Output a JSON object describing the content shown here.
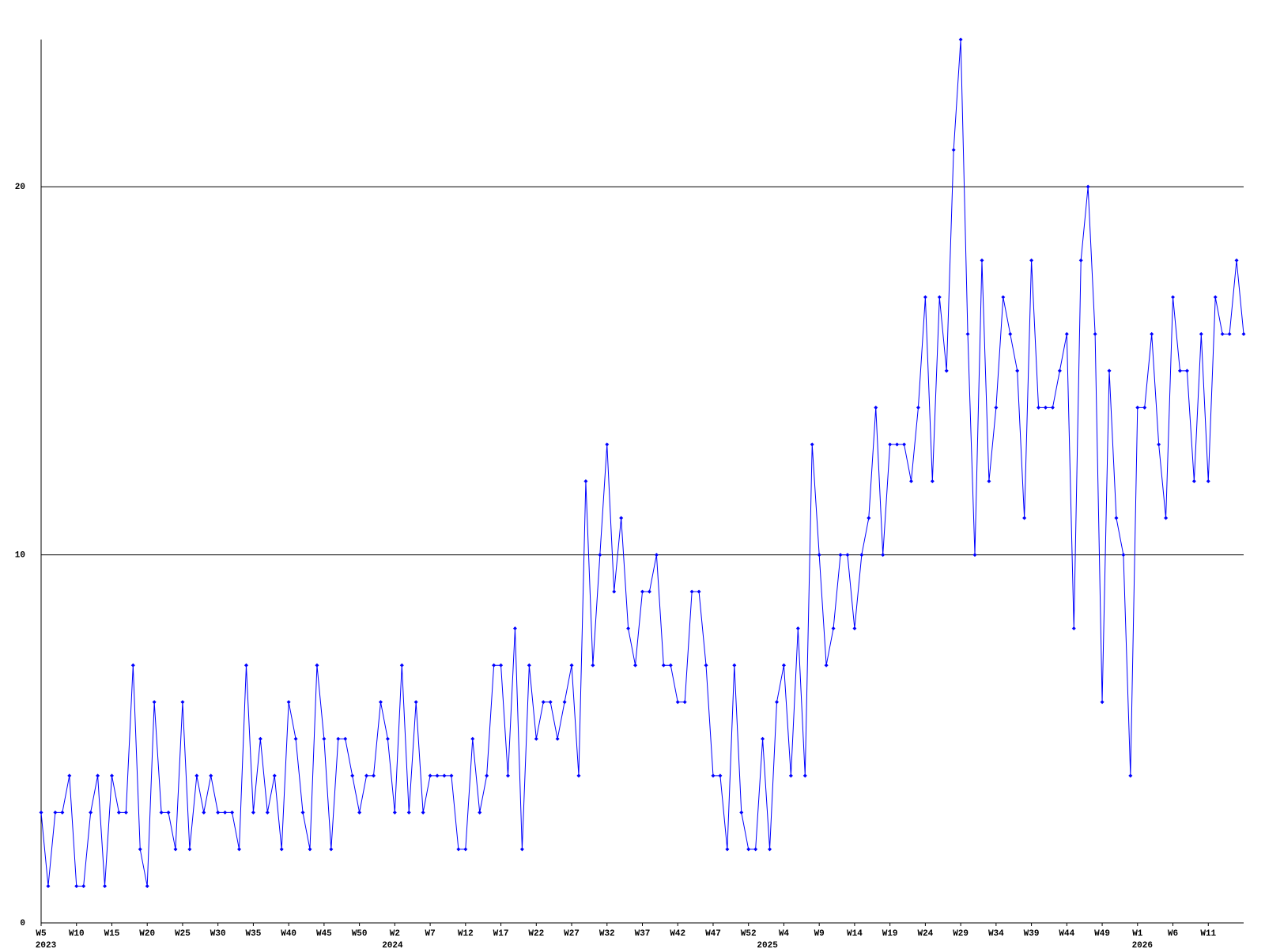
{
  "chart_data": {
    "type": "line",
    "categories": [
      "W5",
      null,
      null,
      null,
      null,
      "W10",
      null,
      null,
      null,
      null,
      "W15",
      null,
      null,
      null,
      null,
      "W20",
      null,
      null,
      null,
      null,
      "W25",
      null,
      null,
      null,
      null,
      "W30",
      null,
      null,
      null,
      null,
      "W35",
      null,
      null,
      null,
      null,
      "W40",
      null,
      null,
      null,
      null,
      "W45",
      null,
      null,
      null,
      null,
      "W50",
      null,
      null,
      null,
      null,
      "W2",
      null,
      null,
      null,
      null,
      "W7",
      null,
      null,
      null,
      null,
      "W12",
      null,
      null,
      null,
      null,
      "W17",
      null,
      null,
      null,
      null,
      "W22",
      null,
      null,
      null,
      null,
      "W27",
      null,
      null,
      null,
      null,
      "W32",
      null,
      null,
      null,
      null,
      "W37",
      null,
      null,
      null,
      null,
      "W42",
      null,
      null,
      null,
      null,
      "W47",
      null,
      null,
      null,
      null,
      "W52",
      null,
      null,
      null,
      null,
      "W4",
      null,
      null,
      null,
      null,
      "W9",
      null,
      null,
      null,
      null,
      "W14",
      null,
      null,
      null,
      null,
      "W19",
      null,
      null,
      null,
      null,
      "W24",
      null,
      null,
      null,
      null,
      "W29",
      null,
      null,
      null,
      null,
      "W34",
      null,
      null,
      null,
      null,
      "W39",
      null,
      null,
      null,
      null,
      "W44",
      null,
      null,
      null,
      null,
      "W49",
      null,
      null,
      null,
      null,
      "W1",
      null,
      null,
      null,
      null,
      "W6",
      null,
      null,
      null,
      null,
      "W11",
      null,
      null,
      null,
      null,
      null
    ],
    "years": [
      "2023",
      null,
      null,
      null,
      null,
      null,
      null,
      null,
      null,
      null,
      null,
      null,
      null,
      null,
      null,
      null,
      null,
      null,
      null,
      null,
      null,
      null,
      null,
      null,
      null,
      null,
      null,
      null,
      null,
      null,
      null,
      null,
      null,
      null,
      null,
      null,
      null,
      null,
      null,
      null,
      null,
      null,
      null,
      null,
      null,
      null,
      null,
      null,
      null,
      "2024",
      null,
      null,
      null,
      null,
      null,
      null,
      null,
      null,
      null,
      null,
      null,
      null,
      null,
      null,
      null,
      null,
      null,
      null,
      null,
      null,
      null,
      null,
      null,
      null,
      null,
      null,
      null,
      null,
      null,
      null,
      null,
      null,
      null,
      null,
      null,
      null,
      null,
      null,
      null,
      null,
      null,
      null,
      null,
      null,
      null,
      null,
      null,
      null,
      null,
      null,
      null,
      null,
      "2025",
      null,
      null,
      null,
      null,
      null,
      null,
      null,
      null,
      null,
      null,
      null,
      null,
      null,
      null,
      null,
      null,
      null,
      null,
      null,
      null,
      null,
      null,
      null,
      null,
      null,
      null,
      null,
      null,
      null,
      null,
      null,
      null,
      null,
      null,
      null,
      null,
      null,
      null,
      null,
      null,
      null,
      null,
      null,
      null,
      null,
      null,
      null,
      null,
      null,
      null,
      null,
      null,
      "2026",
      null,
      null,
      null,
      null,
      null,
      null,
      null,
      null,
      null,
      null,
      null,
      null,
      null,
      null,
      null
    ],
    "series": [
      {
        "color": "#0000ff",
        "values": [
          3,
          1,
          3,
          3,
          4,
          1,
          1,
          3,
          4,
          1,
          4,
          3,
          3,
          7,
          2,
          1,
          6,
          3,
          3,
          2,
          6,
          2,
          4,
          3,
          4,
          3,
          3,
          3,
          2,
          7,
          3,
          5,
          3,
          4,
          2,
          6,
          5,
          3,
          2,
          7,
          5,
          2,
          5,
          5,
          4,
          3,
          4,
          4,
          6,
          5,
          3,
          7,
          3,
          6,
          3,
          4,
          4,
          4,
          4,
          2,
          2,
          5,
          3,
          4,
          7,
          7,
          4,
          8,
          2,
          7,
          5,
          6,
          6,
          5,
          6,
          7,
          4,
          12,
          7,
          10,
          13,
          9,
          11,
          8,
          7,
          9,
          9,
          10,
          7,
          7,
          6,
          6,
          9,
          9,
          7,
          4,
          4,
          2,
          7,
          3,
          2,
          2,
          5,
          2,
          6,
          7,
          4,
          8,
          4,
          13,
          10,
          7,
          8,
          10,
          10,
          8,
          10,
          11,
          14,
          10,
          13,
          13,
          13,
          12,
          14,
          17,
          12,
          17,
          15,
          21,
          24,
          16,
          10,
          18,
          12,
          14,
          17,
          16,
          15,
          11,
          18,
          14,
          14,
          14,
          15,
          16,
          8,
          18,
          20,
          16,
          6,
          15,
          11,
          10,
          4,
          14,
          14,
          16,
          13,
          11,
          17,
          15,
          15,
          12,
          16,
          12,
          17,
          16,
          16,
          18,
          16
        ]
      }
    ],
    "ylim": [
      0,
      24
    ],
    "yticks": [
      0,
      10,
      20
    ],
    "grid": true
  }
}
